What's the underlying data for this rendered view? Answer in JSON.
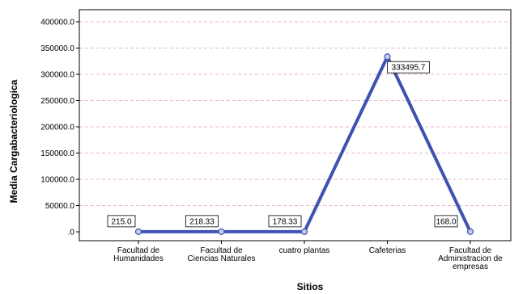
{
  "chart_data": {
    "type": "line",
    "xlabel": "Sitios",
    "ylabel": "Media Cargabacteriologica",
    "categories": [
      [
        "Facultad de",
        "Humanidades"
      ],
      [
        "Facultad de",
        "Ciencias Naturales"
      ],
      [
        "cuatro plantas"
      ],
      [
        "Cafeterias"
      ],
      [
        "Facultad de",
        "Administracion de",
        "empresas"
      ]
    ],
    "values": [
      215.0,
      218.33,
      178.33,
      333495.7,
      168.0
    ],
    "data_labels": [
      "215.0",
      "218.33",
      "178.33",
      "333495.7",
      "168.0"
    ],
    "ylim": [
      0,
      400000
    ],
    "yticks": [
      0,
      50000,
      100000,
      150000,
      200000,
      250000,
      300000,
      350000,
      400000
    ],
    "ytick_labels": [
      ".0",
      "50000.0",
      "100000.0",
      "150000.0",
      "200000.0",
      "250000.0",
      "300000.0",
      "350000.0",
      "400000.0"
    ],
    "grid": true,
    "colors": {
      "line": "#3f51b1",
      "grid": "#e8b7c8",
      "axis": "#000000"
    }
  }
}
